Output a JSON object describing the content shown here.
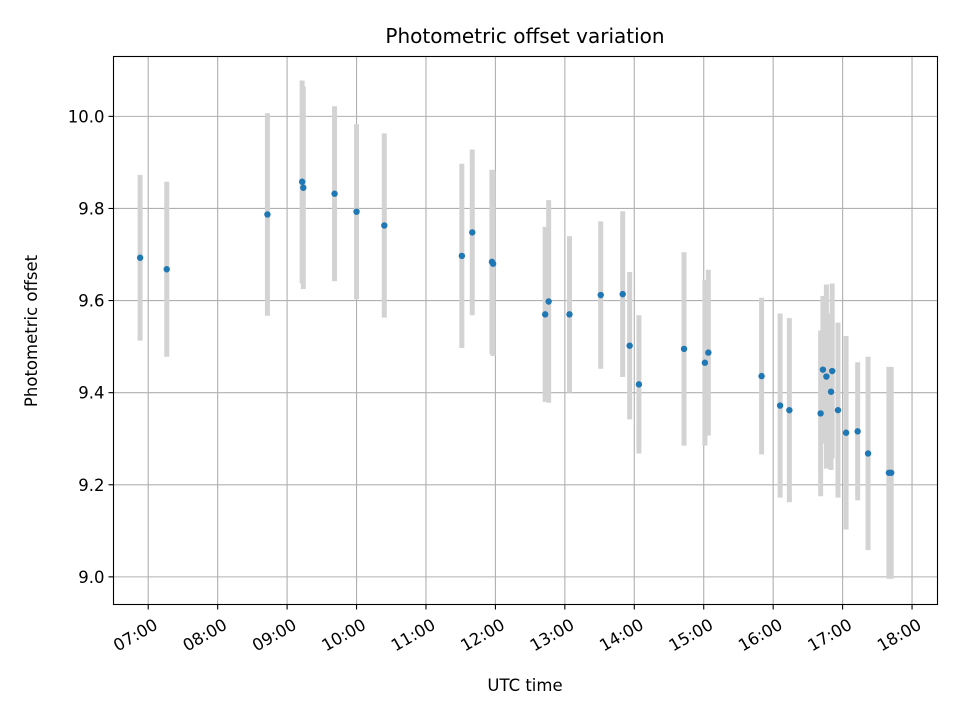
{
  "chart_data": {
    "type": "scatter",
    "title": "Photometric offset variation",
    "xlabel": "UTC time",
    "ylabel": "Photometric offset",
    "x_tick_labels": [
      "07:00",
      "08:00",
      "09:00",
      "10:00",
      "11:00",
      "12:00",
      "13:00",
      "14:00",
      "15:00",
      "16:00",
      "17:00",
      "18:00"
    ],
    "y_tick_labels": [
      "9.0",
      "9.2",
      "9.4",
      "9.6",
      "9.8",
      "10.0"
    ],
    "xlim": [
      "06:30",
      "18:22"
    ],
    "ylim": [
      8.94,
      10.13
    ],
    "grid": true,
    "marker_color": "#1f77b4",
    "errorbar_color": "#d3d3d3",
    "points": [
      {
        "time": "06:53",
        "y": 9.693,
        "yerr": 0.18
      },
      {
        "time": "07:16",
        "y": 9.668,
        "yerr": 0.19
      },
      {
        "time": "08:43",
        "y": 9.787,
        "yerr": 0.22
      },
      {
        "time": "09:13",
        "y": 9.858,
        "yerr": 0.22
      },
      {
        "time": "09:14",
        "y": 9.845,
        "yerr": 0.22
      },
      {
        "time": "09:41",
        "y": 9.832,
        "yerr": 0.19
      },
      {
        "time": "10:00",
        "y": 9.793,
        "yerr": 0.19
      },
      {
        "time": "10:24",
        "y": 9.763,
        "yerr": 0.2
      },
      {
        "time": "11:31",
        "y": 9.697,
        "yerr": 0.2
      },
      {
        "time": "11:40",
        "y": 9.748,
        "yerr": 0.18
      },
      {
        "time": "11:57",
        "y": 9.684,
        "yerr": 0.2
      },
      {
        "time": "11:58",
        "y": 9.68,
        "yerr": 0.2
      },
      {
        "time": "12:43",
        "y": 9.57,
        "yerr": 0.19
      },
      {
        "time": "12:46",
        "y": 9.598,
        "yerr": 0.22
      },
      {
        "time": "13:04",
        "y": 9.57,
        "yerr": 0.17
      },
      {
        "time": "13:31",
        "y": 9.612,
        "yerr": 0.16
      },
      {
        "time": "13:50",
        "y": 9.614,
        "yerr": 0.18
      },
      {
        "time": "13:56",
        "y": 9.502,
        "yerr": 0.16
      },
      {
        "time": "14:04",
        "y": 9.418,
        "yerr": 0.15
      },
      {
        "time": "14:43",
        "y": 9.495,
        "yerr": 0.21
      },
      {
        "time": "15:01",
        "y": 9.465,
        "yerr": 0.18
      },
      {
        "time": "15:04",
        "y": 9.487,
        "yerr": 0.18
      },
      {
        "time": "15:50",
        "y": 9.436,
        "yerr": 0.17
      },
      {
        "time": "16:06",
        "y": 9.372,
        "yerr": 0.2
      },
      {
        "time": "16:14",
        "y": 9.362,
        "yerr": 0.2
      },
      {
        "time": "16:41",
        "y": 9.355,
        "yerr": 0.18
      },
      {
        "time": "16:43",
        "y": 9.45,
        "yerr": 0.16
      },
      {
        "time": "16:46",
        "y": 9.435,
        "yerr": 0.2
      },
      {
        "time": "16:50",
        "y": 9.402,
        "yerr": 0.17
      },
      {
        "time": "16:51",
        "y": 9.447,
        "yerr": 0.19
      },
      {
        "time": "16:56",
        "y": 9.362,
        "yerr": 0.19
      },
      {
        "time": "17:03",
        "y": 9.313,
        "yerr": 0.21
      },
      {
        "time": "17:13",
        "y": 9.316,
        "yerr": 0.15
      },
      {
        "time": "17:22",
        "y": 9.268,
        "yerr": 0.21
      },
      {
        "time": "17:40",
        "y": 9.226,
        "yerr": 0.23
      },
      {
        "time": "17:42",
        "y": 9.226,
        "yerr": 0.23
      }
    ]
  }
}
